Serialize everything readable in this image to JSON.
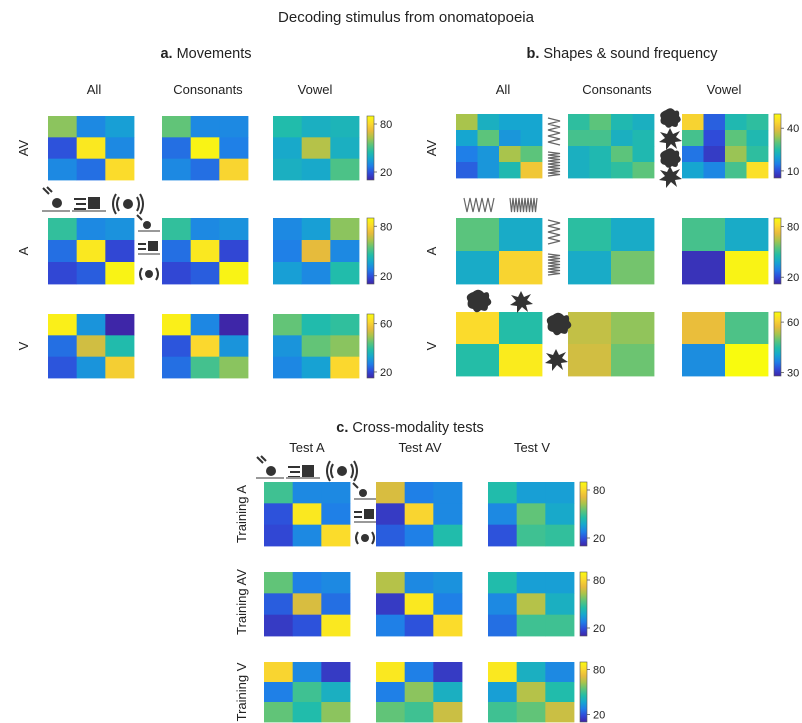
{
  "figure_title": "Decoding stimulus from onomatopoeia",
  "panels": {
    "a": {
      "letter": "a.",
      "name": "Movements",
      "columns": [
        "All",
        "Consonants",
        "Vowel"
      ],
      "rows": [
        "AV",
        "A",
        "V"
      ]
    },
    "b": {
      "letter": "b.",
      "name": "Shapes & sound frequency",
      "columns": [
        "All",
        "Consonants",
        "Vowel"
      ],
      "rows": [
        "AV",
        "A",
        "V"
      ]
    },
    "c": {
      "letter": "c.",
      "name": "Cross-modality tests",
      "columns": [
        "Test A",
        "Test AV",
        "Test V"
      ],
      "rows": [
        "Training A",
        "Training AV",
        "Training V"
      ]
    }
  },
  "colormap": [
    "#3e26a8",
    "#2f4bd9",
    "#1f7fe8",
    "#16a6d0",
    "#22bda8",
    "#5cc47b",
    "#a9c44c",
    "#e8bb3c",
    "#fbd92e",
    "#f9fb0e"
  ],
  "chart_data": [
    {
      "type": "heatmap",
      "panel": "a",
      "row": "AV",
      "ylim": [
        10,
        90
      ],
      "ticks": [
        80,
        20
      ],
      "matrices": [
        [
          [
            60,
            30,
            35
          ],
          [
            20,
            85,
            30
          ],
          [
            30,
            25,
            82
          ]
        ],
        [
          [
            55,
            30,
            30
          ],
          [
            25,
            88,
            28
          ],
          [
            30,
            25,
            80
          ]
        ],
        [
          [
            45,
            40,
            42
          ],
          [
            38,
            65,
            40
          ],
          [
            40,
            38,
            52
          ]
        ]
      ]
    },
    {
      "type": "heatmap",
      "panel": "a",
      "row": "A",
      "ylim": [
        10,
        90
      ],
      "ticks": [
        80,
        20
      ],
      "matrices": [
        [
          [
            48,
            30,
            32
          ],
          [
            25,
            85,
            18
          ],
          [
            18,
            22,
            88
          ]
        ],
        [
          [
            48,
            30,
            32
          ],
          [
            25,
            85,
            18
          ],
          [
            18,
            22,
            88
          ]
        ],
        [
          [
            30,
            35,
            60
          ],
          [
            28,
            72,
            30
          ],
          [
            35,
            30,
            45
          ]
        ]
      ]
    },
    {
      "type": "heatmap",
      "panel": "a",
      "row": "V",
      "ylim": [
        15,
        68
      ],
      "ticks": [
        60,
        20
      ],
      "matrices": [
        [
          [
            66,
            30,
            15
          ],
          [
            25,
            54,
            38
          ],
          [
            22,
            30,
            60
          ]
        ],
        [
          [
            66,
            28,
            15
          ],
          [
            22,
            62,
            30
          ],
          [
            25,
            42,
            48
          ]
        ],
        [
          [
            45,
            38,
            40
          ],
          [
            30,
            45,
            48
          ],
          [
            28,
            32,
            62
          ]
        ]
      ]
    },
    {
      "type": "heatmap",
      "panel": "b",
      "row": "AV",
      "ylim": [
        5,
        50
      ],
      "ticks": [
        40,
        10
      ],
      "matrices": [
        [
          [
            35,
            22,
            20,
            20
          ],
          [
            20,
            30,
            18,
            20
          ],
          [
            15,
            18,
            35,
            30
          ],
          [
            12,
            18,
            24,
            42
          ]
        ],
        [
          [
            26,
            30,
            24,
            22
          ],
          [
            28,
            28,
            22,
            24
          ],
          [
            22,
            24,
            30,
            24
          ],
          [
            22,
            24,
            26,
            30
          ]
        ],
        [
          [
            44,
            12,
            24,
            26
          ],
          [
            28,
            10,
            30,
            24
          ],
          [
            14,
            8,
            34,
            26
          ],
          [
            20,
            16,
            28,
            46
          ]
        ]
      ]
    },
    {
      "type": "heatmap",
      "panel": "b",
      "row": "A",
      "ylim": [
        12,
        90
      ],
      "ticks": [
        80,
        20
      ],
      "matrices": [
        [
          [
            55,
            40
          ],
          [
            40,
            80
          ]
        ],
        [
          [
            48,
            40
          ],
          [
            40,
            58
          ]
        ],
        [
          [
            52,
            40
          ],
          [
            15,
            88
          ]
        ]
      ]
    },
    {
      "type": "heatmap",
      "panel": "b",
      "row": "V",
      "ylim": [
        28,
        66
      ],
      "ticks": [
        60,
        30
      ],
      "matrices": [
        [
          [
            62,
            45
          ],
          [
            45,
            64
          ]
        ],
        [
          [
            55,
            52
          ],
          [
            56,
            50
          ]
        ],
        [
          [
            58,
            48
          ],
          [
            38,
            66
          ]
        ]
      ]
    },
    {
      "type": "heatmap",
      "panel": "c",
      "row": "Training A",
      "ylim": [
        10,
        90
      ],
      "ticks": [
        80,
        20
      ],
      "matrices": [
        [
          [
            50,
            30,
            30
          ],
          [
            20,
            85,
            28
          ],
          [
            18,
            30,
            82
          ]
        ],
        [
          [
            70,
            28,
            30
          ],
          [
            15,
            80,
            30
          ],
          [
            22,
            28,
            45
          ]
        ],
        [
          [
            45,
            35,
            35
          ],
          [
            30,
            55,
            38
          ],
          [
            20,
            50,
            48
          ]
        ]
      ]
    },
    {
      "type": "heatmap",
      "panel": "c",
      "row": "Training AV",
      "ylim": [
        10,
        90
      ],
      "ticks": [
        80,
        20
      ],
      "matrices": [
        [
          [
            55,
            28,
            30
          ],
          [
            22,
            70,
            25
          ],
          [
            15,
            20,
            85
          ]
        ],
        [
          [
            65,
            30,
            32
          ],
          [
            15,
            85,
            28
          ],
          [
            28,
            20,
            82
          ]
        ],
        [
          [
            45,
            35,
            35
          ],
          [
            30,
            65,
            40
          ],
          [
            25,
            50,
            50
          ]
        ]
      ]
    },
    {
      "type": "heatmap",
      "panel": "c",
      "row": "Training V",
      "ylim": [
        10,
        90
      ],
      "ticks": [
        80,
        20
      ],
      "matrices": [
        [
          [
            80,
            30,
            15
          ],
          [
            28,
            50,
            40
          ],
          [
            55,
            45,
            60
          ]
        ],
        [
          [
            85,
            28,
            15
          ],
          [
            28,
            60,
            40
          ],
          [
            55,
            50,
            68
          ]
        ],
        [
          [
            85,
            40,
            30
          ],
          [
            35,
            65,
            45
          ],
          [
            50,
            55,
            68
          ]
        ]
      ]
    }
  ]
}
